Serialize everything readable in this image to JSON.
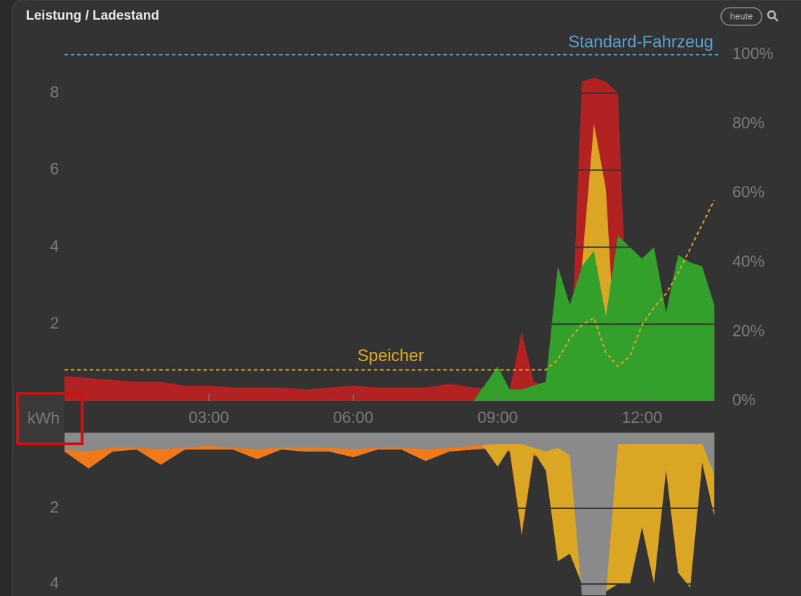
{
  "header": {
    "title": "Leistung / Ladestand",
    "button": "heute"
  },
  "chart_data": [
    {
      "type": "area",
      "ylabel": "kWh",
      "x": [
        "00:00",
        "00:30",
        "01:00",
        "01:30",
        "02:00",
        "02:30",
        "03:00",
        "03:30",
        "04:00",
        "04:30",
        "05:00",
        "05:30",
        "06:00",
        "06:30",
        "07:00",
        "07:30",
        "08:00",
        "08:30",
        "09:00",
        "09:15",
        "09:30",
        "09:45",
        "10:00",
        "10:15",
        "10:30",
        "10:45",
        "11:00",
        "11:15",
        "11:30",
        "11:45",
        "12:00",
        "12:15",
        "12:30",
        "12:45",
        "13:00",
        "13:15",
        "13:30"
      ],
      "xlim": [
        "00:00",
        "13:35"
      ],
      "xticks": [
        "03:00",
        "06:00",
        "09:00",
        "12:00"
      ],
      "ylim": [
        0,
        9
      ],
      "yticks": [
        2,
        4,
        6,
        8
      ],
      "y2lim": [
        0,
        100
      ],
      "y2ticks": [
        {
          "value": 0,
          "label": "0%"
        },
        {
          "value": 20,
          "label": "20%"
        },
        {
          "value": 40,
          "label": "40%"
        },
        {
          "value": 60,
          "label": "60%"
        },
        {
          "value": 80,
          "label": "80%"
        },
        {
          "value": 100,
          "label": "100%"
        }
      ],
      "grid": true,
      "series": [
        {
          "color": "#b22222",
          "values": [
            0.65,
            0.6,
            0.55,
            0.5,
            0.5,
            0.4,
            0.4,
            0.35,
            0.35,
            0.35,
            0.3,
            0.35,
            0.4,
            0.35,
            0.35,
            0.35,
            0.45,
            0.35,
            0.3,
            0.3,
            1.8,
            0.5,
            0.4,
            0.3,
            0.5,
            8.3,
            8.4,
            8.3,
            8.0,
            0,
            0,
            0,
            0,
            0,
            0,
            0,
            0
          ]
        },
        {
          "color": "#dba623",
          "values": [
            0,
            0,
            0,
            0,
            0,
            0,
            0,
            0,
            0,
            0,
            0,
            0,
            0,
            0,
            0,
            0,
            0,
            0,
            0,
            0,
            0,
            0,
            0,
            0,
            0,
            3.5,
            7.2,
            5.5,
            0,
            0,
            0,
            0,
            0,
            0,
            0,
            0,
            2.4
          ]
        },
        {
          "color": "#33a02c",
          "values": [
            0,
            0,
            0,
            0,
            0,
            0,
            0,
            0,
            0,
            0,
            0,
            0,
            0,
            0,
            0,
            0,
            0,
            0,
            0.9,
            0.3,
            0.3,
            0.4,
            0.5,
            3.5,
            2.5,
            3.5,
            3.9,
            2.2,
            4.3,
            4.0,
            3.7,
            4.0,
            2.3,
            3.8,
            3.6,
            3.5,
            2.5
          ]
        },
        {
          "name": "Speicher",
          "type": "line",
          "axis": "y2",
          "dashed": true,
          "color": "#e0a820",
          "values": [
            9,
            9,
            9,
            9,
            9,
            9,
            9,
            9,
            9,
            9,
            9,
            9,
            9,
            9,
            9,
            9,
            9,
            9,
            9,
            9,
            9,
            9,
            9,
            12,
            18,
            22,
            24,
            14,
            10,
            13,
            22,
            27,
            31,
            37,
            44,
            51,
            58
          ]
        }
      ],
      "reference_lines": [
        {
          "label": "Standard-Fahrzeug",
          "value": 100,
          "axis": "y2",
          "color": "#5aa0d0"
        }
      ]
    },
    {
      "type": "area",
      "inverted": true,
      "x": [
        "00:00",
        "00:30",
        "01:00",
        "01:30",
        "02:00",
        "02:30",
        "03:00",
        "03:30",
        "04:00",
        "04:30",
        "05:00",
        "05:30",
        "06:00",
        "06:30",
        "07:00",
        "07:30",
        "08:00",
        "08:30",
        "09:00",
        "09:15",
        "09:30",
        "09:45",
        "10:00",
        "10:15",
        "10:30",
        "10:45",
        "11:00",
        "11:15",
        "11:30",
        "11:45",
        "12:00",
        "12:15",
        "12:30",
        "12:45",
        "13:00",
        "13:15",
        "13:30"
      ],
      "xlim": [
        "00:00",
        "13:35"
      ],
      "ylim": [
        0,
        4.3
      ],
      "yticks": [
        2,
        4
      ],
      "grid": true,
      "series": [
        {
          "color": "#f07a1a",
          "values": [
            0.5,
            0.95,
            0.5,
            0.45,
            0.85,
            0.45,
            0.45,
            0.45,
            0.7,
            0.45,
            0.5,
            0.5,
            0.65,
            0.45,
            0.45,
            0.75,
            0.5,
            0.45,
            0.4,
            0.5,
            2.7,
            0.6,
            0.7,
            0.6,
            0.6,
            0,
            0,
            0,
            0,
            0,
            0,
            0,
            0,
            0,
            0.6,
            0,
            0
          ]
        },
        {
          "color": "#dba623",
          "values": [
            0,
            0,
            0,
            0,
            0,
            0,
            0,
            0,
            0,
            0,
            0,
            0,
            0,
            0,
            0,
            0,
            0,
            0,
            0.9,
            0.4,
            2.6,
            0.5,
            1.0,
            3.4,
            3.2,
            4.0,
            4.2,
            4.2,
            4.0,
            4.0,
            2.5,
            4.0,
            1.0,
            3.7,
            4.1,
            0.8,
            2.2
          ]
        },
        {
          "color": "#8a8a8a",
          "values": [
            0.45,
            0.5,
            0.4,
            0.4,
            0.45,
            0.4,
            0.35,
            0.4,
            0.45,
            0.4,
            0.4,
            0.4,
            0.45,
            0.4,
            0.4,
            0.45,
            0.4,
            0.35,
            0.3,
            0.3,
            0.3,
            0.4,
            0.5,
            0.4,
            0.6,
            4.3,
            4.3,
            4.3,
            0.3,
            0.3,
            0.3,
            0.3,
            0.3,
            0.3,
            0.3,
            0.3,
            1.1
          ]
        }
      ]
    }
  ]
}
